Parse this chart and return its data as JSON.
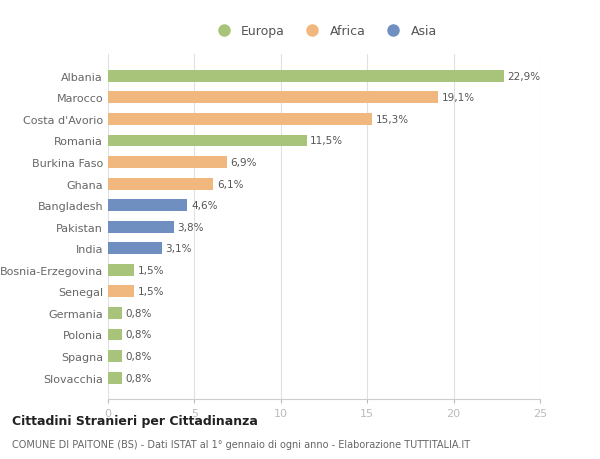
{
  "categories": [
    "Albania",
    "Marocco",
    "Costa d'Avorio",
    "Romania",
    "Burkina Faso",
    "Ghana",
    "Bangladesh",
    "Pakistan",
    "India",
    "Bosnia-Erzegovina",
    "Senegal",
    "Germania",
    "Polonia",
    "Spagna",
    "Slovacchia"
  ],
  "values": [
    22.9,
    19.1,
    15.3,
    11.5,
    6.9,
    6.1,
    4.6,
    3.8,
    3.1,
    1.5,
    1.5,
    0.8,
    0.8,
    0.8,
    0.8
  ],
  "labels": [
    "22,9%",
    "19,1%",
    "15,3%",
    "11,5%",
    "6,9%",
    "6,1%",
    "4,6%",
    "3,8%",
    "3,1%",
    "1,5%",
    "1,5%",
    "0,8%",
    "0,8%",
    "0,8%",
    "0,8%"
  ],
  "continent": [
    "Europa",
    "Africa",
    "Africa",
    "Europa",
    "Africa",
    "Africa",
    "Asia",
    "Asia",
    "Asia",
    "Europa",
    "Africa",
    "Europa",
    "Europa",
    "Europa",
    "Europa"
  ],
  "colors": {
    "Europa": "#a8c47a",
    "Africa": "#f0b87e",
    "Asia": "#6e8fbf"
  },
  "xlim": [
    0,
    25
  ],
  "xticks": [
    0,
    5,
    10,
    15,
    20,
    25
  ],
  "title": "Cittadini Stranieri per Cittadinanza",
  "subtitle": "COMUNE DI PAITONE (BS) - Dati ISTAT al 1° gennaio di ogni anno - Elaborazione TUTTITALIA.IT",
  "background_color": "#ffffff",
  "bar_height": 0.55,
  "grid_color": "#e0e0e0",
  "text_color": "#666666",
  "label_color": "#555555"
}
